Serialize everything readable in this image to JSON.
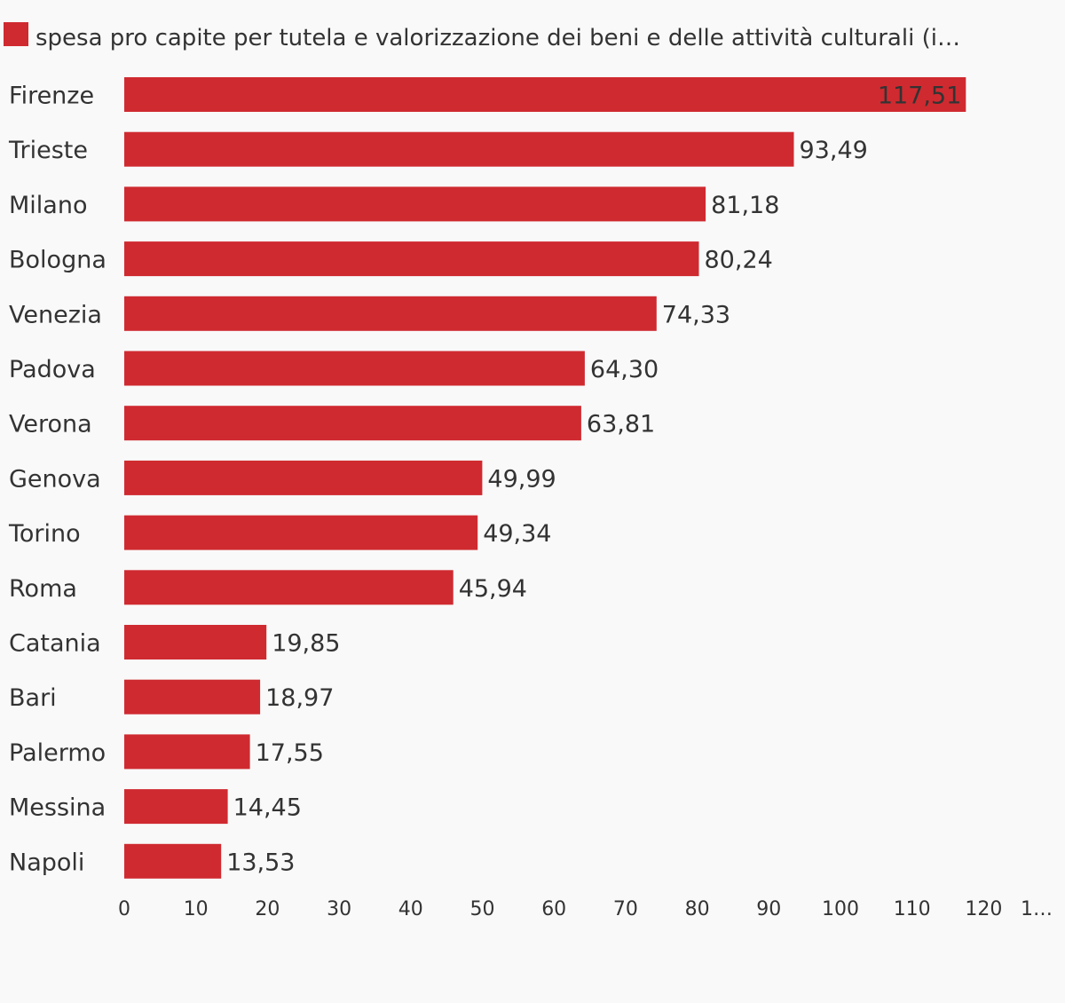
{
  "chart_data": {
    "type": "bar",
    "orientation": "horizontal",
    "legend": {
      "position": "top-left",
      "entries": [
        "spesa pro capite per tutela e valorizzazione dei beni e delle attività culturali (i…"
      ]
    },
    "series": [
      {
        "name": "spesa pro capite per tutela e valorizzazione dei beni e delle attività culturali (i…",
        "color": "#cf2a30",
        "values": [
          117.51,
          93.49,
          81.18,
          80.24,
          74.33,
          64.3,
          63.81,
          49.99,
          49.34,
          45.94,
          19.85,
          18.97,
          17.55,
          14.45,
          13.53
        ]
      }
    ],
    "categories": [
      "Firenze",
      "Trieste",
      "Milano",
      "Bologna",
      "Venezia",
      "Padova",
      "Verona",
      "Genova",
      "Torino",
      "Roma",
      "Catania",
      "Bari",
      "Palermo",
      "Messina",
      "Napoli"
    ],
    "data_labels": [
      "117,51",
      "93,49",
      "81,18",
      "80,24",
      "74,33",
      "64,30",
      "63,81",
      "49,99",
      "49,34",
      "45,94",
      "19,85",
      "18,97",
      "17,55",
      "14,45",
      "13,53"
    ],
    "x_ticks": [
      "0",
      "10",
      "20",
      "30",
      "40",
      "50",
      "60",
      "70",
      "80",
      "90",
      "100",
      "110",
      "120",
      "1…"
    ],
    "xlim": [
      0,
      130
    ],
    "grid": false
  }
}
